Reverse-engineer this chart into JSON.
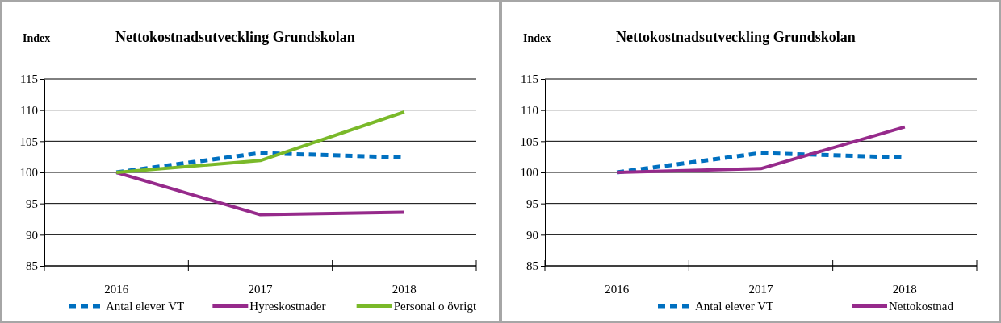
{
  "chart_data": [
    {
      "type": "line",
      "title": "Nettokostnadsutveckling Grundskolan",
      "ylabel": "Index",
      "categories": [
        "2016",
        "2017",
        "2018"
      ],
      "ylim": [
        85,
        115
      ],
      "yticks": [
        85,
        90,
        95,
        100,
        105,
        110,
        115
      ],
      "grid": "y",
      "legend": "bottom",
      "marker": "none",
      "series": [
        {
          "name": "Antal elever VT",
          "color": "#0070c0",
          "line_style": "dashed",
          "values": [
            100,
            103.1,
            102.4
          ]
        },
        {
          "name": "Hyreskostnader",
          "color": "#962a8b",
          "line_style": "solid",
          "values": [
            100,
            93.2,
            93.6
          ]
        },
        {
          "name": "Personal o övrigt",
          "color": "#7ab929",
          "line_style": "solid",
          "values": [
            100,
            101.9,
            109.7
          ]
        }
      ]
    },
    {
      "type": "line",
      "title": "Nettokostnadsutveckling Grundskolan",
      "ylabel": "Index",
      "categories": [
        "2016",
        "2017",
        "2018"
      ],
      "ylim": [
        85,
        115
      ],
      "yticks": [
        85,
        90,
        95,
        100,
        105,
        110,
        115
      ],
      "grid": "y",
      "legend": "bottom",
      "marker": "none",
      "series": [
        {
          "name": "Antal elever VT",
          "color": "#0070c0",
          "line_style": "dashed",
          "values": [
            100,
            103.1,
            102.4
          ]
        },
        {
          "name": "Nettokostnad",
          "color": "#962a8b",
          "line_style": "solid",
          "values": [
            100,
            100.6,
            107.3
          ]
        }
      ]
    }
  ]
}
